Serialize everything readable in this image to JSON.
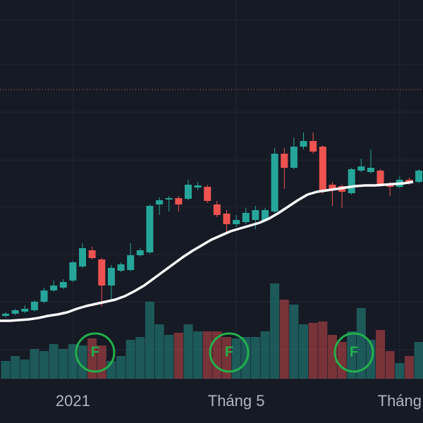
{
  "chart_data": {
    "type": "candlestick",
    "categories": [
      null,
      null,
      null,
      null,
      null,
      null,
      null,
      "2021",
      null,
      null,
      null,
      null,
      null,
      null,
      null,
      null,
      null,
      null,
      null,
      null,
      null,
      null,
      null,
      null,
      "Tháng 5",
      null,
      null,
      null,
      null,
      null,
      null,
      null,
      null,
      null,
      null,
      null,
      null,
      null,
      null,
      null,
      null,
      "Tháng",
      null,
      null
    ],
    "open": [
      92,
      95,
      98,
      100,
      112,
      128,
      132,
      142,
      162,
      185,
      172,
      135,
      156,
      157,
      178,
      182,
      250,
      257,
      259,
      258,
      274,
      275,
      250,
      237,
      222,
      225,
      228,
      228,
      240,
      322,
      302,
      332,
      340,
      332,
      278,
      276,
      266,
      298,
      296,
      298,
      278,
      275,
      285,
      282
    ],
    "high": [
      97,
      102,
      107,
      114,
      132,
      142,
      144,
      170,
      195,
      190,
      174,
      164,
      168,
      195,
      188,
      250,
      260,
      262,
      262,
      285,
      282,
      278,
      255,
      242,
      235,
      245,
      248,
      245,
      330,
      330,
      345,
      352,
      352,
      334,
      282,
      278,
      302,
      315,
      328,
      300,
      282,
      290,
      288,
      300
    ],
    "low": [
      90,
      93,
      96,
      98,
      110,
      126,
      130,
      140,
      160,
      172,
      105,
      115,
      154,
      155,
      176,
      180,
      235,
      240,
      240,
      256,
      270,
      252,
      232,
      210,
      218,
      222,
      215,
      226,
      238,
      272,
      300,
      328,
      322,
      265,
      248,
      245,
      264,
      296,
      294,
      275,
      262,
      273,
      278,
      280
    ],
    "close": [
      95,
      100,
      102,
      112,
      128,
      135,
      140,
      168,
      188,
      174,
      135,
      160,
      165,
      178,
      185,
      248,
      256,
      259,
      250,
      278,
      277,
      255,
      235,
      222,
      228,
      238,
      242,
      242,
      322,
      302,
      332,
      340,
      325,
      268,
      272,
      268,
      300,
      304,
      302,
      278,
      275,
      285,
      280,
      298
    ],
    "volume": [
      25,
      32,
      27,
      42,
      39,
      49,
      42,
      49,
      47,
      57,
      47,
      25,
      32,
      55,
      59,
      109,
      77,
      62,
      65,
      77,
      67,
      67,
      67,
      59,
      57,
      59,
      59,
      67,
      135,
      112,
      105,
      77,
      79,
      81,
      62,
      52,
      67,
      100,
      55,
      69,
      39,
      22,
      32,
      52
    ],
    "moving_average": {
      "color": "#ffffff",
      "values": [
        85,
        85,
        86,
        87,
        89,
        92,
        94,
        97,
        102,
        106,
        109,
        112,
        115,
        120,
        127,
        135,
        145,
        155,
        165,
        175,
        184,
        192,
        200,
        206,
        212,
        216,
        220,
        224,
        230,
        238,
        247,
        256,
        264,
        268,
        270,
        272,
        274,
        276,
        277,
        277,
        278,
        279,
        280,
        282
      ]
    },
    "up_color": "#26a69a",
    "down_color": "#ef5350",
    "ylim": [
      3,
      540
    ],
    "y2lim": [
      0,
      537
    ],
    "price_line": 413,
    "markers": [
      "F",
      "F",
      "F"
    ]
  }
}
